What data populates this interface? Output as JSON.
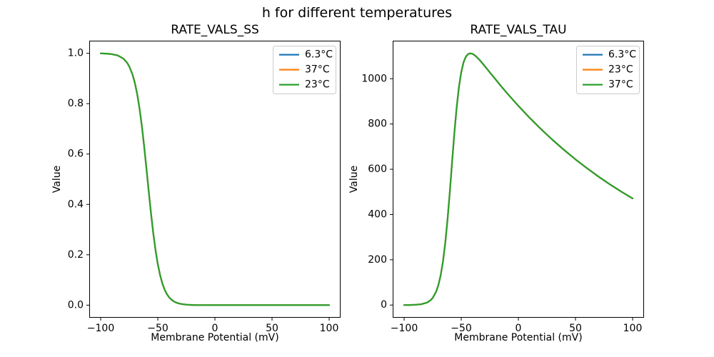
{
  "figure": {
    "suptitle": "h for different temperatures",
    "background": "#ffffff"
  },
  "chart_data": [
    {
      "type": "line",
      "title": "RATE_VALS_SS",
      "xlabel": "Membrane Potential (mV)",
      "ylabel": "Value",
      "xlim": [
        -110,
        110
      ],
      "ylim": [
        -0.05,
        1.05
      ],
      "grid": false,
      "xticks": {
        "values": [
          -100,
          -50,
          0,
          50,
          100
        ],
        "labels": [
          "−100",
          "−50",
          "0",
          "50",
          "100"
        ]
      },
      "yticks": {
        "values": [
          0.0,
          0.2,
          0.4,
          0.6,
          0.8,
          1.0
        ],
        "labels": [
          "0.0",
          "0.2",
          "0.4",
          "0.6",
          "0.8",
          "1.0"
        ]
      },
      "legend_position": "upper right",
      "series": [
        {
          "name": "6.3°C",
          "color": "#1f77b4"
        },
        {
          "name": "37°C",
          "color": "#ff7f0e"
        },
        {
          "name": "23°C",
          "color": "#2ca02c"
        }
      ],
      "series_note": "All three temperature curves are identical and overlap exactly; only the last-drawn (green) line is visible.",
      "x": [
        -100,
        -95,
        -90,
        -85,
        -80,
        -77,
        -75,
        -72,
        -70,
        -68,
        -66,
        -64,
        -62,
        -60,
        -59,
        -58,
        -56,
        -54,
        -52,
        -50,
        -48,
        -46,
        -44,
        -42,
        -40,
        -38,
        -36,
        -34,
        -32,
        -30,
        -28,
        -24,
        -20,
        -15,
        -10,
        0,
        10,
        20,
        30,
        40,
        50,
        60,
        70,
        80,
        90,
        100
      ],
      "values": [
        0.9994,
        0.9986,
        0.9964,
        0.9912,
        0.9785,
        0.9635,
        0.9483,
        0.9141,
        0.8808,
        0.837,
        0.7812,
        0.7128,
        0.6331,
        0.5453,
        0.5,
        0.4547,
        0.3669,
        0.2872,
        0.2188,
        0.163,
        0.1192,
        0.086,
        0.0614,
        0.0435,
        0.0306,
        0.0215,
        0.015,
        0.0105,
        0.0073,
        0.0051,
        0.0036,
        0.0017,
        0.0008,
        0.0003,
        0.0001,
        0.0,
        0.0,
        0.0,
        0.0,
        0.0,
        0.0,
        0.0,
        0.0,
        0.0,
        0.0,
        0.0
      ]
    },
    {
      "type": "line",
      "title": "RATE_VALS_TAU",
      "xlabel": "Membrane Potential (mV)",
      "ylabel": "Value",
      "xlim": [
        -110,
        110
      ],
      "ylim": [
        -56,
        1168
      ],
      "grid": false,
      "xticks": {
        "values": [
          -100,
          -50,
          0,
          50,
          100
        ],
        "labels": [
          "−100",
          "−50",
          "0",
          "50",
          "100"
        ]
      },
      "yticks": {
        "values": [
          0,
          200,
          400,
          600,
          800,
          1000
        ],
        "labels": [
          "0",
          "200",
          "400",
          "600",
          "800",
          "1000"
        ]
      },
      "legend_position": "upper right",
      "series": [
        {
          "name": "6.3°C",
          "color": "#1f77b4"
        },
        {
          "name": "23°C",
          "color": "#ff7f0e"
        },
        {
          "name": "37°C",
          "color": "#2ca02c"
        }
      ],
      "series_note": "All three temperature curves are identical and overlap exactly; only the last-drawn (green) line is visible. Peak ≈ 1110 near −43 mV.",
      "x": [
        -100,
        -95,
        -90,
        -85,
        -80,
        -77,
        -75,
        -72,
        -70,
        -68,
        -66,
        -64,
        -62,
        -60,
        -59,
        -58,
        -56,
        -54,
        -52,
        -50,
        -48,
        -46,
        -44,
        -42,
        -40,
        -38,
        -36,
        -34,
        -32,
        -30,
        -28,
        -24,
        -20,
        -15,
        -10,
        0,
        10,
        20,
        30,
        40,
        50,
        60,
        70,
        80,
        90,
        100
      ],
      "values": [
        0.0,
        0.4,
        1.3,
        3.7,
        10.8,
        20.6,
        31.5,
        58.9,
        88.6,
        131.6,
        192.0,
        273.9,
        377.7,
        500.0,
        565.9,
        632.4,
        760.9,
        874.0,
        963.9,
        1028.9,
        1072.0,
        1096.9,
        1108.9,
        1112.2,
        1109.4,
        1102.7,
        1093.7,
        1083.0,
        1071.4,
        1059.3,
        1046.8,
        1022.0,
        997.2,
        966.4,
        936.7,
        880.0,
        826.7,
        776.6,
        729.5,
        685.3,
        643.8,
        604.8,
        568.1,
        533.7,
        501.4,
        471.0
      ]
    }
  ],
  "style": {
    "line_width": 2.2,
    "legend_border_color": "#cccccc",
    "legend_bg": "#ffffff",
    "spine_color": "#000000"
  }
}
